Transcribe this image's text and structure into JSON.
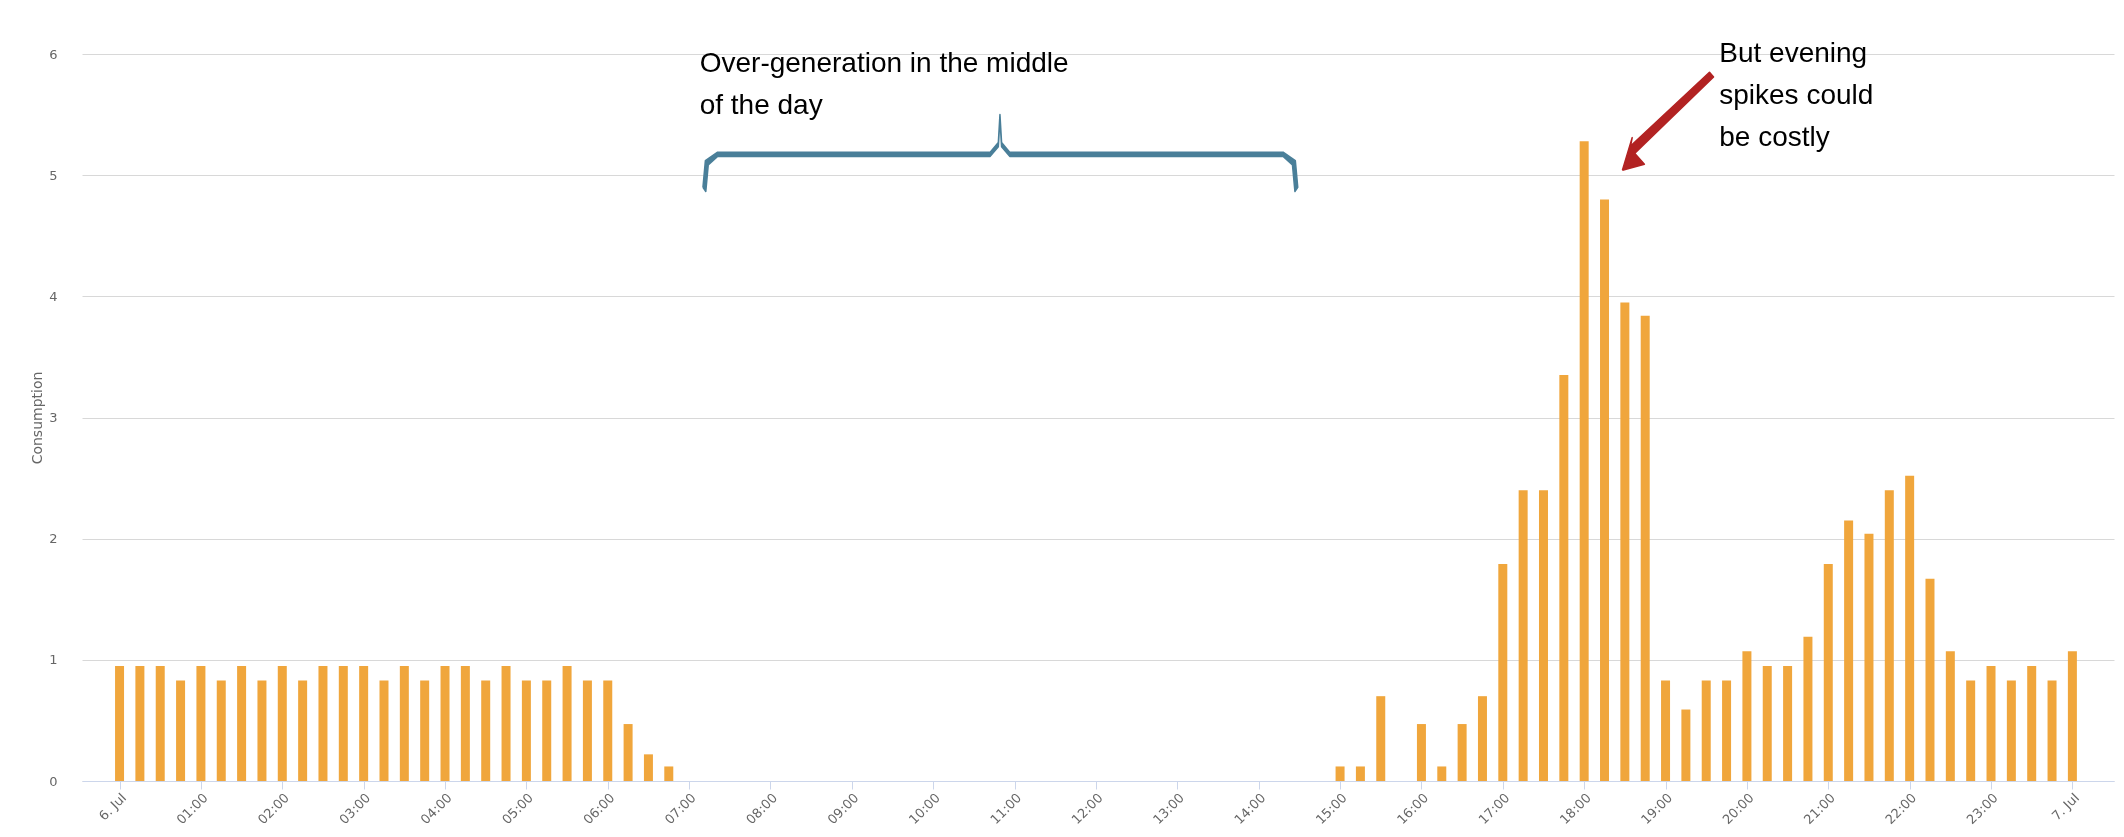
{
  "chart_data": {
    "type": "bar",
    "ylabel": "Consumption",
    "x": [
      0,
      0.25,
      0.5,
      0.75,
      1,
      1.25,
      1.5,
      1.75,
      2,
      2.25,
      2.5,
      2.75,
      3,
      3.25,
      3.5,
      3.75,
      4,
      4.25,
      4.5,
      4.75,
      5,
      5.25,
      5.5,
      5.75,
      6,
      6.25,
      6.5,
      6.75,
      15,
      15.25,
      15.5,
      16,
      16.25,
      16.5,
      16.75,
      17,
      17.25,
      17.5,
      17.75,
      18,
      18.25,
      18.5,
      18.75,
      19,
      19.25,
      19.5,
      19.75,
      20,
      20.25,
      20.5,
      20.75,
      21,
      21.25,
      21.5,
      21.75,
      22,
      22.25,
      22.5,
      22.75,
      23,
      23.25,
      23.5,
      23.75,
      24
    ],
    "values": [
      0.95,
      0.95,
      0.95,
      0.83,
      0.95,
      0.83,
      0.95,
      0.83,
      0.95,
      0.83,
      0.95,
      0.95,
      0.95,
      0.83,
      0.95,
      0.83,
      0.95,
      0.95,
      0.83,
      0.95,
      0.83,
      0.83,
      0.95,
      0.83,
      0.83,
      0.47,
      0.22,
      0.12,
      0.12,
      0.12,
      0.7,
      0.47,
      0.12,
      0.47,
      0.7,
      1.79,
      2.4,
      2.4,
      3.35,
      5.28,
      4.8,
      3.95,
      3.84,
      0.83,
      0.59,
      0.83,
      0.83,
      1.07,
      0.95,
      0.95,
      1.19,
      1.79,
      2.15,
      2.04,
      2.4,
      2.52,
      1.67,
      1.07,
      0.83,
      0.95,
      0.83,
      0.95,
      0.83,
      1.07
    ],
    "color": "#f0a63c",
    "xlim": [
      -0.4,
      24.45
    ],
    "xticks": [
      {
        "value": 0,
        "label": "6. Jul"
      },
      {
        "value": 1,
        "label": "01:00"
      },
      {
        "value": 2,
        "label": "02:00"
      },
      {
        "value": 3,
        "label": "03:00"
      },
      {
        "value": 4,
        "label": "04:00"
      },
      {
        "value": 5,
        "label": "05:00"
      },
      {
        "value": 6,
        "label": "06:00"
      },
      {
        "value": 7,
        "label": "07:00"
      },
      {
        "value": 8,
        "label": "08:00"
      },
      {
        "value": 9,
        "label": "09:00"
      },
      {
        "value": 10,
        "label": "10:00"
      },
      {
        "value": 11,
        "label": "11:00"
      },
      {
        "value": 12,
        "label": "12:00"
      },
      {
        "value": 13,
        "label": "13:00"
      },
      {
        "value": 14,
        "label": "14:00"
      },
      {
        "value": 15,
        "label": "15:00"
      },
      {
        "value": 16,
        "label": "16:00"
      },
      {
        "value": 17,
        "label": "17:00"
      },
      {
        "value": 18,
        "label": "18:00"
      },
      {
        "value": 19,
        "label": "19:00"
      },
      {
        "value": 20,
        "label": "20:00"
      },
      {
        "value": 21,
        "label": "21:00"
      },
      {
        "value": 22,
        "label": "22:00"
      },
      {
        "value": 23,
        "label": "23:00"
      },
      {
        "value": 24,
        "label": "7. Jul"
      }
    ],
    "ylim": [
      0,
      6
    ],
    "yticks": [
      0,
      1,
      2,
      3,
      4,
      5,
      6
    ],
    "grid": "y",
    "annotations": [
      "Over-generation in the middle of the day",
      "But evening spikes could be costly"
    ]
  }
}
